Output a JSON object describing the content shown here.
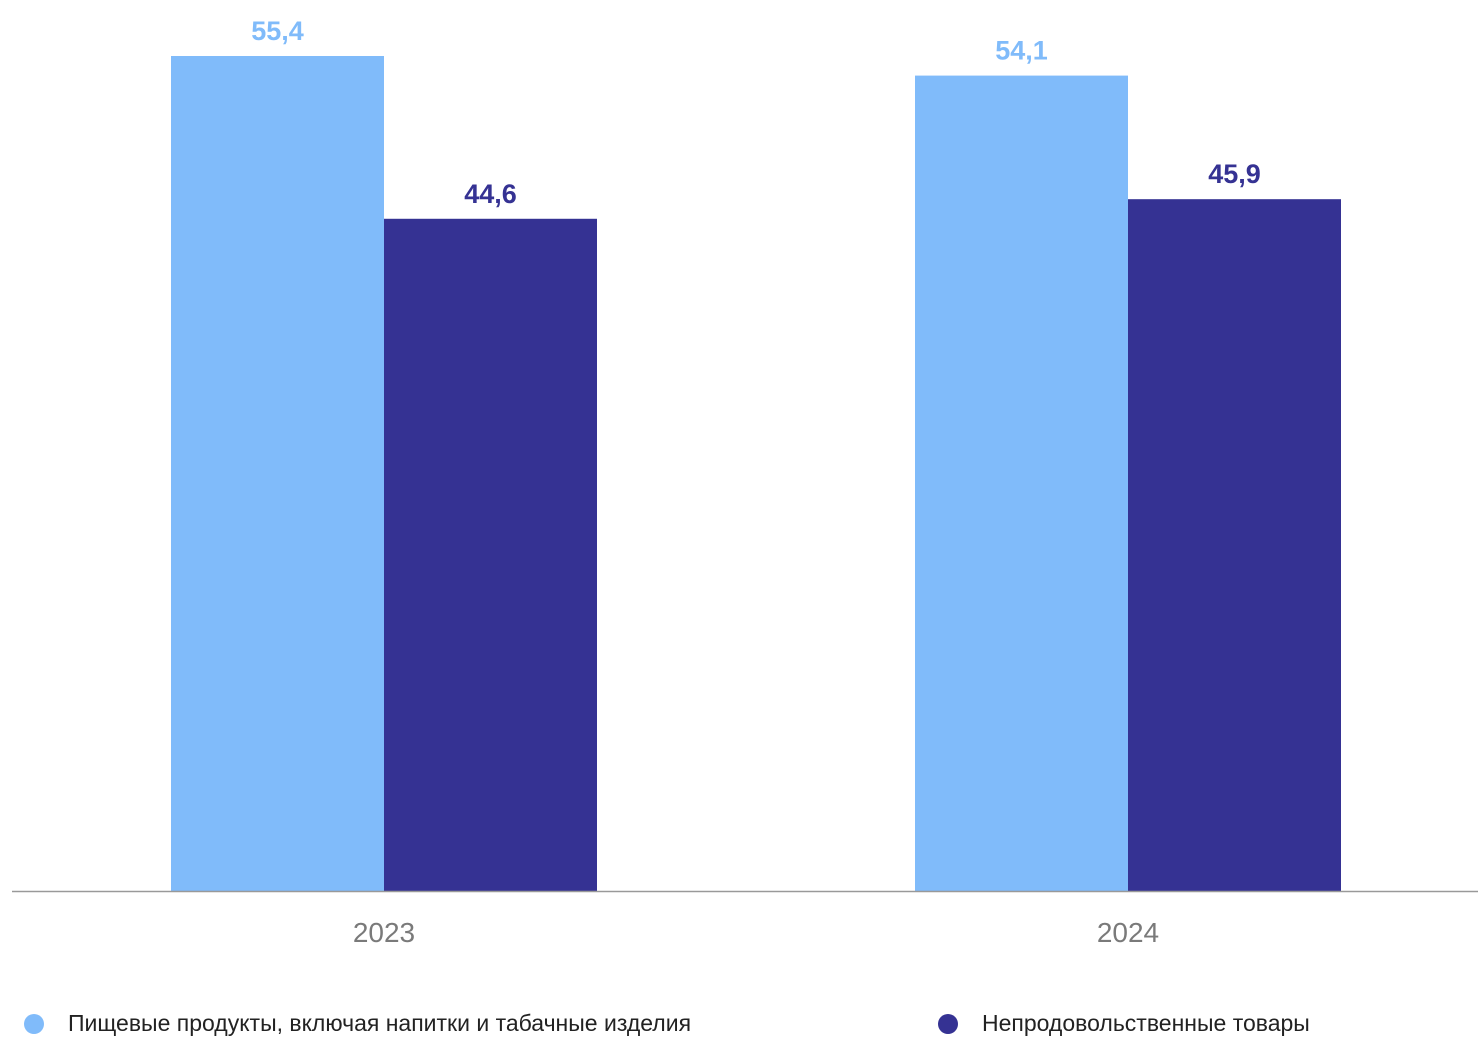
{
  "chart_data": {
    "type": "bar",
    "categories": [
      "2023",
      "2024"
    ],
    "series": [
      {
        "name": "Пищевые продукты, включая напитки и табачные изделия",
        "values": [
          55.4,
          54.1
        ],
        "labels": [
          "55,4",
          "54,1"
        ],
        "color": "#80bbfa"
      },
      {
        "name": "Непродовольственные товары",
        "values": [
          44.6,
          45.9
        ],
        "labels": [
          "44,6",
          "45,9"
        ],
        "color": "#353293"
      }
    ],
    "ylim": [
      0,
      58
    ],
    "grid": false,
    "legend_position": "bottom",
    "axis_color": "#999999",
    "tick_label_color": "#7a7a7a"
  }
}
